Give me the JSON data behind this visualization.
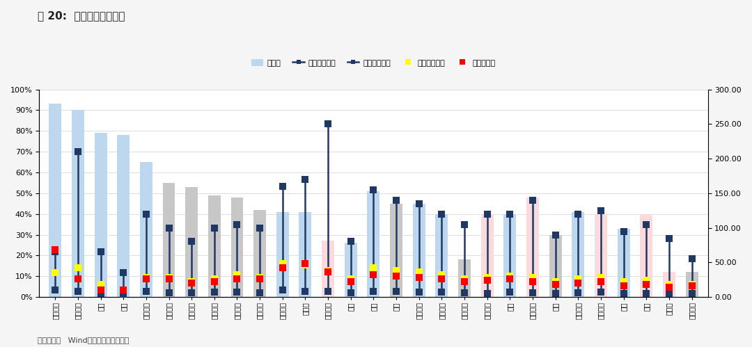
{
  "title": "图 20:  申万一级行业估值",
  "source": "数据来源：   Wind，国泰君安证券研究",
  "categories": [
    "食品饮料",
    "休闲服务",
    "汽车",
    "银行",
    "家用电器",
    "综合行业",
    "纺织服装",
    "交通运输",
    "电气设备",
    "医药生物",
    "国际贸易",
    "计算机",
    "国防军工",
    "化工",
    "券商",
    "钢铁",
    "有色金属",
    "机械设备",
    "轻工制造",
    "建筑材料",
    "电子",
    "公用事业",
    "传媒",
    "农林牧渔",
    "非银金融",
    "通信",
    "保险",
    "房地产",
    "建筑装饰"
  ],
  "bar_values": [
    93,
    90,
    79,
    78,
    65,
    55,
    53,
    49,
    48,
    42,
    41,
    41,
    27,
    26,
    51,
    45,
    45,
    40,
    18,
    40,
    40,
    48,
    30,
    41,
    40,
    33,
    40,
    12,
    12
  ],
  "bar_colors": [
    "#BDD7EE",
    "#BDD7EE",
    "#BDD7EE",
    "#BDD7EE",
    "#BDD7EE",
    "#C7C7C7",
    "#C7C7C7",
    "#C7C7C7",
    "#C7C7C7",
    "#C7C7C7",
    "#BDD7EE",
    "#BDD7EE",
    "#FADADD",
    "#BDD7EE",
    "#BDD7EE",
    "#C7C7C7",
    "#BDD7EE",
    "#BDD7EE",
    "#C7C7C7",
    "#FADADD",
    "#BDD7EE",
    "#FADADD",
    "#C7C7C7",
    "#BDD7EE",
    "#FADADD",
    "#BDD7EE",
    "#FADADD",
    "#FADADD",
    "#C7C7C7"
  ],
  "max_values": [
    65,
    210,
    65,
    35,
    120,
    100,
    80,
    100,
    105,
    100,
    160,
    170,
    250,
    80,
    155,
    140,
    135,
    120,
    105,
    120,
    120,
    140,
    90,
    120,
    125,
    95,
    105,
    85,
    55
  ],
  "min_values": [
    10,
    8,
    5,
    3,
    8,
    6,
    6,
    7,
    7,
    6,
    10,
    8,
    8,
    6,
    8,
    8,
    7,
    7,
    6,
    5,
    7,
    6,
    5,
    6,
    7,
    5,
    5,
    5,
    5
  ],
  "median_values": [
    35,
    42,
    18,
    10,
    28,
    28,
    22,
    26,
    32,
    28,
    48,
    46,
    38,
    26,
    42,
    38,
    36,
    32,
    26,
    28,
    30,
    28,
    22,
    26,
    28,
    22,
    24,
    18,
    18
  ],
  "current_values": [
    68,
    26,
    10,
    10,
    26,
    26,
    20,
    22,
    26,
    26,
    42,
    48,
    36,
    22,
    32,
    30,
    28,
    26,
    22,
    24,
    26,
    22,
    18,
    20,
    22,
    16,
    18,
    14,
    16
  ],
  "left_ylim": [
    0,
    1.0
  ],
  "right_ylim": [
    0,
    300
  ],
  "left_yticks": [
    0.0,
    0.1,
    0.2,
    0.3,
    0.4,
    0.5,
    0.6,
    0.7,
    0.8,
    0.9,
    1.0
  ],
  "left_yticklabels": [
    "0%",
    "10%",
    "20%",
    "30%",
    "40%",
    "50%",
    "60%",
    "70%",
    "80%",
    "90%",
    "100%"
  ],
  "right_yticks": [
    0,
    50,
    100,
    150,
    200,
    250,
    300
  ],
  "right_yticklabels": [
    "0.00",
    "50.00",
    "100.00",
    "150.00",
    "200.00",
    "250.00",
    "300.00"
  ],
  "legend_items": [
    "分位数",
    "最大值（右）",
    "最小值（右）",
    "中位数（右）",
    "现值（右）"
  ],
  "bar_legend_color": "#BDD7EE",
  "marker_color_max": "#1F3864",
  "marker_color_min": "#1F3864",
  "marker_color_median": "#FFFF00",
  "marker_color_current": "#FF0000",
  "line_color": "#1F3864",
  "grid_color": "#D0D0D0",
  "bg_color": "#F5F5F5",
  "plot_bg": "#FFFFFF",
  "bar_width": 0.55,
  "marker_size": 7,
  "line_width": 1.8,
  "title_fontsize": 11,
  "tick_fontsize": 8,
  "legend_fontsize": 8,
  "source_fontsize": 8
}
